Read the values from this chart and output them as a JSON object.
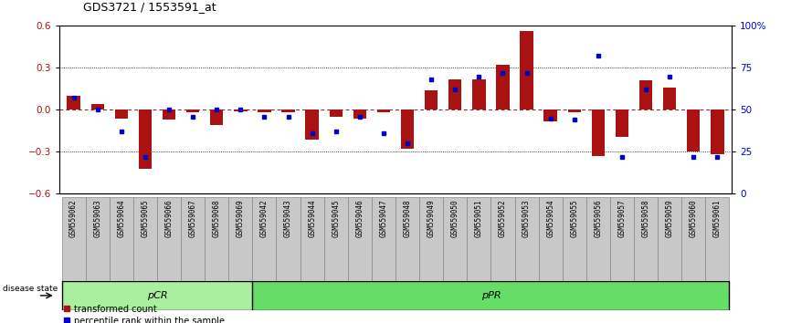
{
  "title": "GDS3721 / 1553591_at",
  "samples": [
    "GSM559062",
    "GSM559063",
    "GSM559064",
    "GSM559065",
    "GSM559066",
    "GSM559067",
    "GSM559068",
    "GSM559069",
    "GSM559042",
    "GSM559043",
    "GSM559044",
    "GSM559045",
    "GSM559046",
    "GSM559047",
    "GSM559048",
    "GSM559049",
    "GSM559050",
    "GSM559051",
    "GSM559052",
    "GSM559053",
    "GSM559054",
    "GSM559055",
    "GSM559056",
    "GSM559057",
    "GSM559058",
    "GSM559059",
    "GSM559060",
    "GSM559061"
  ],
  "transformed_count": [
    0.1,
    0.04,
    -0.06,
    -0.42,
    -0.07,
    -0.02,
    -0.11,
    -0.01,
    -0.02,
    -0.02,
    -0.21,
    -0.05,
    -0.06,
    -0.02,
    -0.28,
    0.14,
    0.22,
    0.22,
    0.32,
    0.56,
    -0.08,
    -0.02,
    -0.33,
    -0.19,
    0.21,
    0.16,
    -0.3,
    -0.32
  ],
  "percentile_rank": [
    57,
    50,
    37,
    22,
    50,
    46,
    50,
    50,
    46,
    46,
    36,
    37,
    46,
    36,
    30,
    68,
    62,
    70,
    72,
    72,
    45,
    44,
    82,
    22,
    62,
    70,
    22,
    22
  ],
  "pcr_count": 8,
  "bar_color": "#AA1111",
  "dot_color": "#0000CC",
  "ylim": [
    -0.6,
    0.6
  ],
  "yticks_left": [
    -0.6,
    -0.3,
    0.0,
    0.3,
    0.6
  ],
  "yticks_right": [
    0,
    25,
    50,
    75,
    100
  ],
  "pcr_color": "#AAEEA0",
  "ppr_color": "#66DD66",
  "label_bg_color": "#C8C8C8",
  "label_border_color": "#888888"
}
